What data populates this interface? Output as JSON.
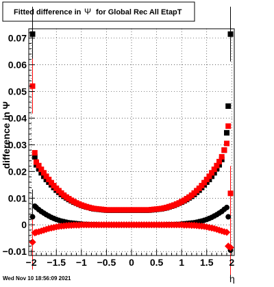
{
  "title": "Fitted difference in Ψ for Global Rec All EtapT",
  "title_parts": {
    "pre": "Fitted difference in",
    "sym": "Ψ",
    "post": "for Global Rec All EtapT"
  },
  "timestamp": "Wed Nov 10 18:56:09 2021",
  "colors": {
    "black_series": "#000000",
    "red_series": "#ff0000"
  },
  "chart_data": {
    "type": "scatter",
    "title": "Fitted difference in Ψ for Global Rec All EtapT",
    "xlabel": "η",
    "ylabel": "difference in Ψ",
    "xlim": [
      -2.05,
      2.05
    ],
    "ylim": [
      -0.0115,
      0.0735
    ],
    "grid": true,
    "x_ticks": [
      -2,
      -1.5,
      -1,
      -0.5,
      0,
      0.5,
      1,
      1.5,
      2
    ],
    "x_tick_labels": [
      "−2",
      "−1.5",
      "−1",
      "−0.5",
      "0",
      "0.5",
      "1",
      "1.5",
      "2"
    ],
    "y_ticks": [
      -0.01,
      0,
      0.01,
      0.02,
      0.03,
      0.04,
      0.05,
      0.06,
      0.07
    ],
    "y_tick_labels": [
      "−0.01",
      "0",
      "0.01",
      "0.02",
      "0.03",
      "0.04",
      "0.05",
      "0.06",
      "0.07"
    ],
    "series": [
      {
        "color": "#000000",
        "x": [
          -1.975,
          -1.93,
          -1.9,
          -1.85,
          -1.8,
          -1.75,
          -1.7,
          -1.65,
          -1.6,
          -1.55,
          -1.5,
          -1.45,
          -1.4,
          -1.35,
          -1.3,
          -1.25,
          -1.2,
          -1.15,
          -1.1,
          -1.05,
          -1.0,
          -0.95,
          -0.9,
          -0.85,
          -0.8,
          -0.75,
          -0.7,
          -0.65,
          -0.6,
          -0.55,
          -0.5,
          -0.45,
          -0.4,
          -0.35,
          -0.3,
          -0.25,
          -0.2,
          -0.15,
          -0.1,
          -0.05,
          0.0,
          0.05,
          0.1,
          0.15,
          0.2,
          0.25,
          0.3,
          0.35,
          0.4,
          0.45,
          0.5,
          0.55,
          0.6,
          0.65,
          0.7,
          0.75,
          0.8,
          0.85,
          0.9,
          0.95,
          1.0,
          1.05,
          1.1,
          1.15,
          1.2,
          1.25,
          1.3,
          1.35,
          1.4,
          1.45,
          1.5,
          1.55,
          1.6,
          1.65,
          1.7,
          1.75,
          1.8,
          1.85,
          1.9,
          1.93,
          1.975
        ],
        "y": [
          0.0715,
          0.0255,
          0.0225,
          0.021,
          0.0195,
          0.0182,
          0.017,
          0.016,
          0.015,
          0.014,
          0.013,
          0.0122,
          0.0114,
          0.0107,
          0.0101,
          0.0095,
          0.009,
          0.0085,
          0.0081,
          0.0077,
          0.0073,
          0.007,
          0.0067,
          0.0065,
          0.0062,
          0.006,
          0.0059,
          0.0058,
          0.0057,
          0.0056,
          0.0055,
          0.0055,
          0.0055,
          0.0055,
          0.0055,
          0.0055,
          0.0055,
          0.0055,
          0.0055,
          0.0055,
          0.0055,
          0.0055,
          0.0055,
          0.0055,
          0.0055,
          0.0055,
          0.0055,
          0.0055,
          0.0056,
          0.0057,
          0.0058,
          0.0059,
          0.006,
          0.0062,
          0.0064,
          0.0067,
          0.007,
          0.0073,
          0.0077,
          0.0081,
          0.0085,
          0.009,
          0.0095,
          0.0101,
          0.0107,
          0.0114,
          0.0122,
          0.013,
          0.014,
          0.015,
          0.016,
          0.017,
          0.0182,
          0.0195,
          0.021,
          0.0225,
          0.0245,
          0.028,
          0.0345,
          0.0445,
          0.0715
        ]
      },
      {
        "color": "#ff0000",
        "x": [
          -1.975,
          -1.93,
          -1.9,
          -1.85,
          -1.8,
          -1.75,
          -1.7,
          -1.65,
          -1.6,
          -1.55,
          -1.5,
          -1.45,
          -1.4,
          -1.35,
          -1.3,
          -1.25,
          -1.2,
          -1.15,
          -1.1,
          -1.05,
          -1.0,
          -0.95,
          -0.9,
          -0.85,
          -0.8,
          -0.75,
          -0.7,
          -0.65,
          -0.6,
          -0.55,
          -0.5,
          -0.45,
          -0.4,
          -0.35,
          -0.3,
          -0.25,
          -0.2,
          -0.15,
          -0.1,
          -0.05,
          0.0,
          0.05,
          0.1,
          0.15,
          0.2,
          0.25,
          0.3,
          0.35,
          0.4,
          0.45,
          0.5,
          0.55,
          0.6,
          0.65,
          0.7,
          0.75,
          0.8,
          0.85,
          0.9,
          0.95,
          1.0,
          1.05,
          1.1,
          1.15,
          1.2,
          1.25,
          1.3,
          1.35,
          1.4,
          1.45,
          1.5,
          1.55,
          1.6,
          1.65,
          1.7,
          1.75,
          1.8,
          1.85,
          1.9,
          1.93,
          1.975
        ],
        "y": [
          0.052,
          0.027,
          0.0235,
          0.0222,
          0.0208,
          0.0195,
          0.0182,
          0.017,
          0.0158,
          0.0147,
          0.0137,
          0.0128,
          0.0119,
          0.0111,
          0.0104,
          0.0098,
          0.0092,
          0.0087,
          0.0082,
          0.0078,
          0.0074,
          0.0071,
          0.0068,
          0.0065,
          0.0063,
          0.0061,
          0.006,
          0.0059,
          0.0058,
          0.0057,
          0.0056,
          0.0056,
          0.0056,
          0.0056,
          0.0056,
          0.0056,
          0.0056,
          0.0056,
          0.0056,
          0.0056,
          0.0056,
          0.0056,
          0.0056,
          0.0056,
          0.0056,
          0.0056,
          0.0056,
          0.0056,
          0.0057,
          0.0058,
          0.0059,
          0.006,
          0.0061,
          0.0063,
          0.0065,
          0.0068,
          0.0071,
          0.0074,
          0.0078,
          0.0082,
          0.0087,
          0.0092,
          0.0098,
          0.0104,
          0.0111,
          0.0119,
          0.0128,
          0.0137,
          0.0147,
          0.0158,
          0.017,
          0.0182,
          0.0195,
          0.0208,
          0.0222,
          0.0237,
          0.0255,
          0.028,
          0.0305,
          0.037,
          0.0118
        ]
      },
      {
        "color": "#000000",
        "x": [
          -1.975,
          -1.93,
          -1.9,
          -1.85,
          -1.8,
          -1.75,
          -1.7,
          -1.65,
          -1.6,
          -1.55,
          -1.5,
          -1.45,
          -1.4,
          -1.35,
          -1.3,
          -1.25,
          -1.2,
          -1.15,
          -1.1,
          -1.05,
          -1.0,
          -0.95,
          -0.9,
          -0.85,
          -0.8,
          -0.75,
          -0.7,
          -0.65,
          -0.6,
          -0.55,
          -0.5,
          -0.45,
          -0.4,
          -0.35,
          -0.3,
          -0.25,
          -0.2,
          -0.15,
          -0.1,
          -0.05,
          0.0,
          0.05,
          0.1,
          0.15,
          0.2,
          0.25,
          0.3,
          0.35,
          0.4,
          0.45,
          0.5,
          0.55,
          0.6,
          0.65,
          0.7,
          0.75,
          0.8,
          0.85,
          0.9,
          0.95,
          1.0,
          1.05,
          1.1,
          1.15,
          1.2,
          1.25,
          1.3,
          1.35,
          1.4,
          1.45,
          1.5,
          1.55,
          1.6,
          1.65,
          1.7,
          1.75,
          1.8,
          1.85,
          1.9,
          1.93,
          1.975
        ],
        "y": [
          0.003,
          0.007,
          0.0065,
          0.0057,
          0.005,
          0.0044,
          0.0038,
          0.0033,
          0.0028,
          0.0024,
          0.002,
          0.0017,
          0.0014,
          0.0012,
          0.001,
          0.0008,
          0.0007,
          0.0006,
          0.0005,
          0.0004,
          0.0003,
          0.0002,
          0.0002,
          0.0001,
          0.0001,
          0.0001,
          0.0001,
          0.0,
          0.0,
          0.0,
          0.0,
          0.0,
          0.0,
          0.0,
          0.0,
          0.0,
          0.0,
          0.0,
          0.0,
          0.0,
          0.0,
          0.0,
          0.0,
          0.0,
          0.0,
          0.0,
          0.0,
          0.0,
          0.0,
          0.0,
          0.0,
          0.0,
          0.0,
          0.0,
          0.0001,
          0.0001,
          0.0001,
          0.0001,
          0.0002,
          0.0002,
          0.0003,
          0.0004,
          0.0005,
          0.0006,
          0.0007,
          0.0008,
          0.001,
          0.0012,
          0.0014,
          0.0017,
          0.002,
          0.0024,
          0.0028,
          0.0033,
          0.0038,
          0.0044,
          0.005,
          0.0058,
          0.0065,
          0.003,
          -0.0095
        ]
      },
      {
        "color": "#ff0000",
        "x": [
          -1.975,
          -1.93,
          -1.9,
          -1.85,
          -1.8,
          -1.75,
          -1.7,
          -1.65,
          -1.6,
          -1.55,
          -1.5,
          -1.45,
          -1.4,
          -1.35,
          -1.3,
          -1.25,
          -1.2,
          -1.15,
          -1.1,
          -1.05,
          -1.0,
          -0.95,
          -0.9,
          -0.85,
          -0.8,
          -0.75,
          -0.7,
          -0.65,
          -0.6,
          -0.55,
          -0.5,
          -0.45,
          -0.4,
          -0.35,
          -0.3,
          -0.25,
          -0.2,
          -0.15,
          -0.1,
          -0.05,
          0.0,
          0.05,
          0.1,
          0.15,
          0.2,
          0.25,
          0.3,
          0.35,
          0.4,
          0.45,
          0.5,
          0.55,
          0.6,
          0.65,
          0.7,
          0.75,
          0.8,
          0.85,
          0.9,
          0.95,
          1.0,
          1.05,
          1.1,
          1.15,
          1.2,
          1.25,
          1.3,
          1.35,
          1.4,
          1.45,
          1.5,
          1.55,
          1.6,
          1.65,
          1.7,
          1.75,
          1.8,
          1.85,
          1.9,
          1.93,
          1.975
        ],
        "y": [
          -0.0065,
          -0.003,
          -0.0028,
          -0.0026,
          -0.0023,
          -0.002,
          -0.0017,
          -0.0014,
          -0.0012,
          -0.001,
          -0.0008,
          -0.0006,
          -0.0005,
          -0.0004,
          -0.0003,
          -0.0002,
          -0.0002,
          -0.0001,
          -0.0001,
          -0.0001,
          0.0,
          0.0,
          0.0,
          0.0,
          0.0,
          0.0,
          0.0,
          0.0,
          0.0,
          0.0,
          0.0,
          0.0,
          0.0,
          0.0,
          0.0,
          0.0,
          0.0,
          0.0,
          0.0,
          0.0,
          0.0,
          0.0,
          0.0,
          0.0,
          0.0,
          0.0,
          0.0,
          0.0,
          0.0,
          0.0,
          0.0,
          0.0,
          0.0,
          0.0,
          0.0,
          0.0,
          0.0,
          0.0,
          0.0,
          0.0,
          0.0,
          -0.0001,
          -0.0001,
          -0.0001,
          -0.0002,
          -0.0002,
          -0.0003,
          -0.0004,
          -0.0005,
          -0.0006,
          -0.0008,
          -0.001,
          -0.0012,
          -0.0014,
          -0.0017,
          -0.002,
          -0.0023,
          -0.0026,
          -0.0028,
          -0.008,
          -0.0085
        ]
      }
    ]
  }
}
